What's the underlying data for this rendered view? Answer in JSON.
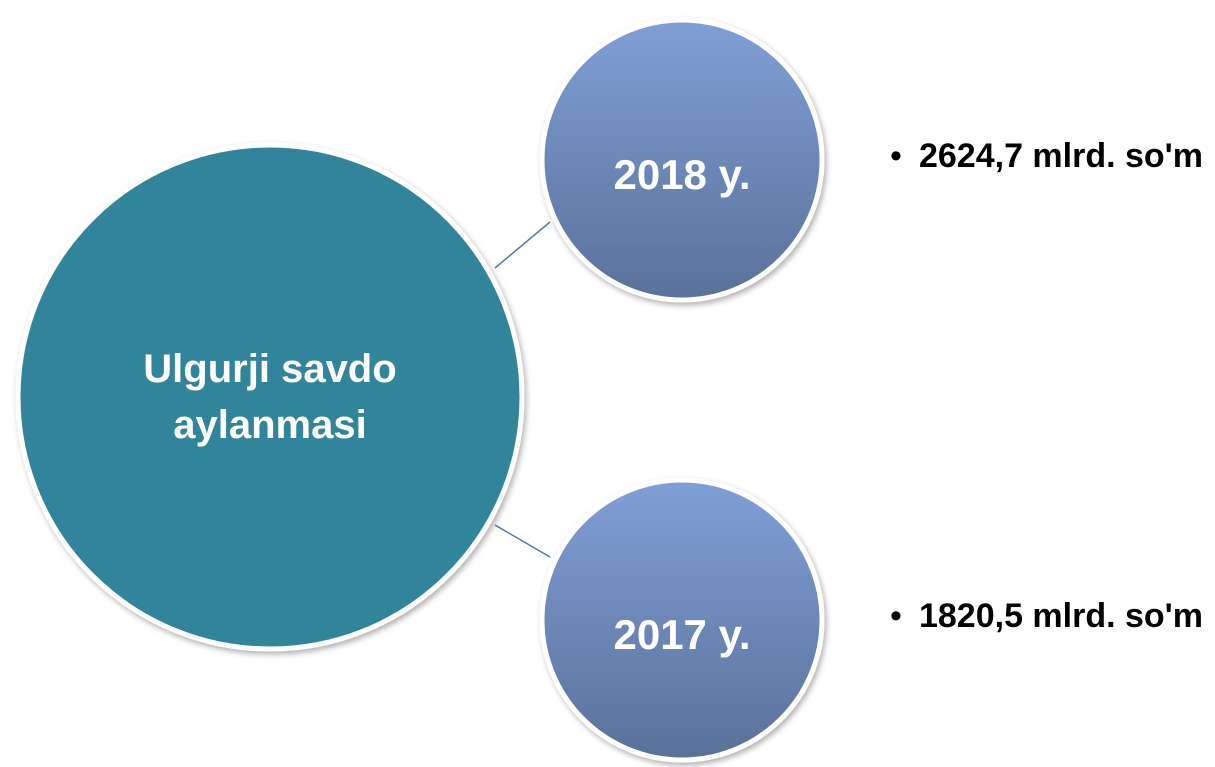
{
  "center": {
    "label": "Ulgurji savdo aylanmasi"
  },
  "nodes": [
    {
      "label": "2018 y.",
      "detail": "2624,7 mlrd. so'm"
    },
    {
      "label": "2017 y.",
      "detail": "1820,5 mlrd. so'm"
    }
  ]
}
